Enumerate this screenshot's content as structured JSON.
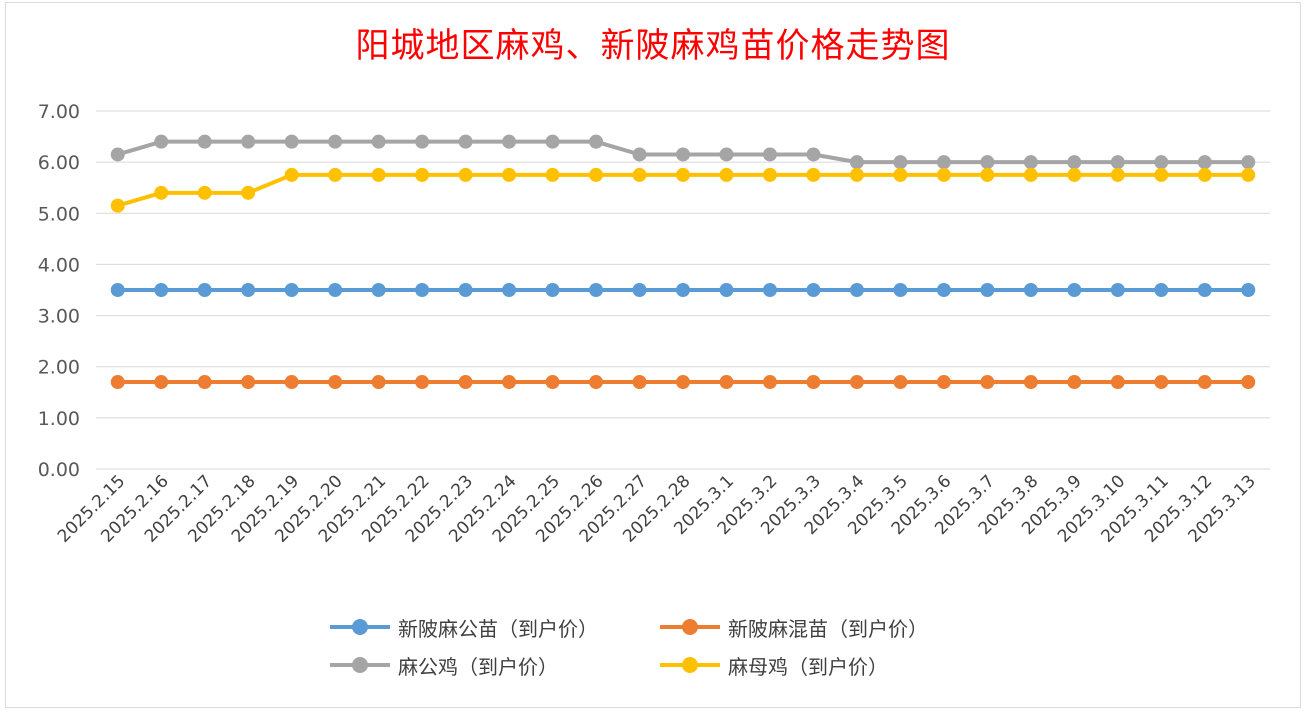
{
  "chart_data": {
    "type": "line",
    "title": "阳城地区麻鸡、新陂麻鸡苗价格走势图",
    "xlabel": "",
    "ylabel": "",
    "ylim": [
      0,
      7
    ],
    "y_ticks": [
      "0.00",
      "1.00",
      "2.00",
      "3.00",
      "4.00",
      "5.00",
      "6.00",
      "7.00"
    ],
    "grid": true,
    "legend_position": "bottom",
    "categories": [
      "2025.2.15",
      "2025.2.16",
      "2025.2.17",
      "2025.2.18",
      "2025.2.19",
      "2025.2.20",
      "2025.2.21",
      "2025.2.22",
      "2025.2.23",
      "2025.2.24",
      "2025.2.25",
      "2025.2.26",
      "2025.2.27",
      "2025.2.28",
      "2025.3.1",
      "2025.3.2",
      "2025.3.3",
      "2025.3.4",
      "2025.3.5",
      "2025.3.6",
      "2025.3.7",
      "2025.3.8",
      "2025.3.9",
      "2025.3.10",
      "2025.3.11",
      "2025.3.12",
      "2025.3.13"
    ],
    "series": [
      {
        "name": "新陂麻公苗（到户价）",
        "color": "#5b9bd5",
        "values": [
          3.5,
          3.5,
          3.5,
          3.5,
          3.5,
          3.5,
          3.5,
          3.5,
          3.5,
          3.5,
          3.5,
          3.5,
          3.5,
          3.5,
          3.5,
          3.5,
          3.5,
          3.5,
          3.5,
          3.5,
          3.5,
          3.5,
          3.5,
          3.5,
          3.5,
          3.5,
          3.5
        ]
      },
      {
        "name": "新陂麻混苗（到户价）",
        "color": "#ed7d31",
        "values": [
          1.7,
          1.7,
          1.7,
          1.7,
          1.7,
          1.7,
          1.7,
          1.7,
          1.7,
          1.7,
          1.7,
          1.7,
          1.7,
          1.7,
          1.7,
          1.7,
          1.7,
          1.7,
          1.7,
          1.7,
          1.7,
          1.7,
          1.7,
          1.7,
          1.7,
          1.7,
          1.7
        ]
      },
      {
        "name": "麻公鸡（到户价）",
        "color": "#a5a5a5",
        "values": [
          6.15,
          6.4,
          6.4,
          6.4,
          6.4,
          6.4,
          6.4,
          6.4,
          6.4,
          6.4,
          6.4,
          6.4,
          6.15,
          6.15,
          6.15,
          6.15,
          6.15,
          6.0,
          6.0,
          6.0,
          6.0,
          6.0,
          6.0,
          6.0,
          6.0,
          6.0,
          6.0
        ]
      },
      {
        "name": "麻母鸡（到户价）",
        "color": "#ffc000",
        "values": [
          5.15,
          5.4,
          5.4,
          5.4,
          5.75,
          5.75,
          5.75,
          5.75,
          5.75,
          5.75,
          5.75,
          5.75,
          5.75,
          5.75,
          5.75,
          5.75,
          5.75,
          5.75,
          5.75,
          5.75,
          5.75,
          5.75,
          5.75,
          5.75,
          5.75,
          5.75,
          5.75
        ]
      }
    ]
  }
}
